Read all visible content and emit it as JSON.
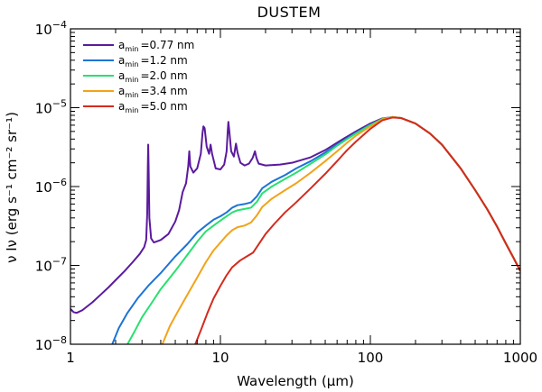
{
  "chart_data": {
    "type": "line",
    "title": "DUSTEM",
    "xlabel": "Wavelength (µm)",
    "ylabel": "ν Iν (erg s⁻¹ cm⁻² sr⁻¹)",
    "xscale": "log",
    "yscale": "log",
    "xlim": [
      1,
      1000
    ],
    "ylim": [
      1e-08,
      0.0001
    ],
    "grid": false,
    "legend_position": "top-left",
    "x_ticks": [
      {
        "value": 1,
        "label": "1"
      },
      {
        "value": 10,
        "label": "10"
      },
      {
        "value": 100,
        "label": "100"
      },
      {
        "value": 1000,
        "label": "1000"
      }
    ],
    "y_ticks": [
      {
        "value": 1e-08,
        "mant": "10",
        "exp": "−8"
      },
      {
        "value": 1e-07,
        "mant": "10",
        "exp": "−7"
      },
      {
        "value": 1e-06,
        "mant": "10",
        "exp": "−6"
      },
      {
        "value": 1e-05,
        "mant": "10",
        "exp": "−5"
      },
      {
        "value": 0.0001,
        "mant": "10",
        "exp": "−4"
      }
    ],
    "series": [
      {
        "name": "a_min = 0.77 nm",
        "legend_label": "=0.77 nm",
        "color": "#5b1a9e",
        "points": [
          [
            1.0,
            2.8e-08
          ],
          [
            1.05,
            2.55e-08
          ],
          [
            1.1,
            2.5e-08
          ],
          [
            1.2,
            2.7e-08
          ],
          [
            1.4,
            3.4e-08
          ],
          [
            1.6,
            4.3e-08
          ],
          [
            1.8,
            5.3e-08
          ],
          [
            2.0,
            6.5e-08
          ],
          [
            2.3,
            8.5e-08
          ],
          [
            2.6,
            1.1e-07
          ],
          [
            2.9,
            1.4e-07
          ],
          [
            3.1,
            1.7e-07
          ],
          [
            3.2,
            2.1e-07
          ],
          [
            3.25,
            4.5e-07
          ],
          [
            3.28,
            1.8e-06
          ],
          [
            3.3,
            3.4e-06
          ],
          [
            3.32,
            1.8e-06
          ],
          [
            3.36,
            4e-07
          ],
          [
            3.45,
            2.2e-07
          ],
          [
            3.6,
            1.95e-07
          ],
          [
            4.0,
            2.1e-07
          ],
          [
            4.5,
            2.5e-07
          ],
          [
            5.0,
            3.6e-07
          ],
          [
            5.3,
            5e-07
          ],
          [
            5.6,
            8.5e-07
          ],
          [
            5.9,
            1.1e-06
          ],
          [
            6.1,
            1.8e-06
          ],
          [
            6.2,
            2.8e-06
          ],
          [
            6.3,
            1.8e-06
          ],
          [
            6.6,
            1.5e-06
          ],
          [
            7.0,
            1.7e-06
          ],
          [
            7.4,
            2.6e-06
          ],
          [
            7.6,
            4.8e-06
          ],
          [
            7.7,
            5.8e-06
          ],
          [
            7.85,
            5.5e-06
          ],
          [
            8.1,
            3.2e-06
          ],
          [
            8.4,
            2.6e-06
          ],
          [
            8.6,
            3.4e-06
          ],
          [
            8.8,
            2.6e-06
          ],
          [
            9.3,
            1.7e-06
          ],
          [
            10.0,
            1.65e-06
          ],
          [
            10.6,
            1.9e-06
          ],
          [
            11.0,
            2.8e-06
          ],
          [
            11.2,
            5.2e-06
          ],
          [
            11.3,
            6.6e-06
          ],
          [
            11.45,
            5.2e-06
          ],
          [
            11.8,
            2.8e-06
          ],
          [
            12.3,
            2.4e-06
          ],
          [
            12.7,
            3.5e-06
          ],
          [
            13.0,
            2.7e-06
          ],
          [
            13.6,
            2e-06
          ],
          [
            14.5,
            1.85e-06
          ],
          [
            15.5,
            1.95e-06
          ],
          [
            16.4,
            2.3e-06
          ],
          [
            17.0,
            2.8e-06
          ],
          [
            17.4,
            2.3e-06
          ],
          [
            18.0,
            1.95e-06
          ],
          [
            20.0,
            1.85e-06
          ],
          [
            25.0,
            1.9e-06
          ],
          [
            30.0,
            2e-06
          ],
          [
            40.0,
            2.35e-06
          ],
          [
            50.0,
            2.9e-06
          ],
          [
            60.0,
            3.6e-06
          ],
          [
            70.0,
            4.3e-06
          ],
          [
            80.0,
            5e-06
          ],
          [
            100.0,
            6.3e-06
          ],
          [
            120.0,
            7.3e-06
          ],
          [
            140.0,
            7.6e-06
          ],
          [
            160.0,
            7.4e-06
          ],
          [
            200.0,
            6.3e-06
          ],
          [
            250.0,
            4.7e-06
          ],
          [
            300.0,
            3.4e-06
          ],
          [
            400.0,
            1.7e-06
          ],
          [
            500.0,
            9e-07
          ],
          [
            600.0,
            5.2e-07
          ],
          [
            700.0,
            3.1e-07
          ],
          [
            800.0,
            1.9e-07
          ],
          [
            900.0,
            1.25e-07
          ],
          [
            1000.0,
            8.5e-08
          ]
        ]
      },
      {
        "name": "a_min = 1.2 nm",
        "legend_label": "=1.2 nm",
        "color": "#1c73d6",
        "points": [
          [
            1.9,
            1e-08
          ],
          [
            2.1,
            1.6e-08
          ],
          [
            2.4,
            2.5e-08
          ],
          [
            2.8,
            3.8e-08
          ],
          [
            3.3,
            5.5e-08
          ],
          [
            4.0,
            8e-08
          ],
          [
            5.0,
            1.3e-07
          ],
          [
            6.0,
            1.85e-07
          ],
          [
            7.0,
            2.6e-07
          ],
          [
            8.0,
            3.2e-07
          ],
          [
            9.0,
            3.8e-07
          ],
          [
            10.0,
            4.2e-07
          ],
          [
            11.0,
            4.7e-07
          ],
          [
            12.0,
            5.4e-07
          ],
          [
            13.0,
            5.8e-07
          ],
          [
            14.5,
            6e-07
          ],
          [
            16.0,
            6.3e-07
          ],
          [
            17.5,
            7.5e-07
          ],
          [
            19.0,
            9.5e-07
          ],
          [
            22.0,
            1.15e-06
          ],
          [
            27.0,
            1.4e-06
          ],
          [
            32.0,
            1.7e-06
          ],
          [
            40.0,
            2.1e-06
          ],
          [
            50.0,
            2.7e-06
          ],
          [
            60.0,
            3.4e-06
          ],
          [
            70.0,
            4.1e-06
          ],
          [
            80.0,
            4.8e-06
          ],
          [
            100.0,
            6.1e-06
          ],
          [
            120.0,
            7.2e-06
          ],
          [
            140.0,
            7.6e-06
          ],
          [
            160.0,
            7.4e-06
          ],
          [
            200.0,
            6.3e-06
          ],
          [
            250.0,
            4.7e-06
          ],
          [
            300.0,
            3.4e-06
          ],
          [
            400.0,
            1.7e-06
          ],
          [
            500.0,
            9e-07
          ],
          [
            600.0,
            5.2e-07
          ],
          [
            700.0,
            3.1e-07
          ],
          [
            800.0,
            1.9e-07
          ],
          [
            900.0,
            1.25e-07
          ],
          [
            1000.0,
            8.5e-08
          ]
        ]
      },
      {
        "name": "a_min = 2.0 nm",
        "legend_label": "=2.0 nm",
        "color": "#28e070",
        "points": [
          [
            2.4,
            1e-08
          ],
          [
            2.7,
            1.5e-08
          ],
          [
            3.0,
            2.2e-08
          ],
          [
            3.5,
            3.4e-08
          ],
          [
            4.0,
            5e-08
          ],
          [
            5.0,
            8.5e-08
          ],
          [
            6.0,
            1.35e-07
          ],
          [
            7.0,
            2e-07
          ],
          [
            8.0,
            2.7e-07
          ],
          [
            9.0,
            3.2e-07
          ],
          [
            10.0,
            3.7e-07
          ],
          [
            11.0,
            4.2e-07
          ],
          [
            12.0,
            4.7e-07
          ],
          [
            13.0,
            5e-07
          ],
          [
            14.5,
            5.2e-07
          ],
          [
            16.0,
            5.4e-07
          ],
          [
            17.5,
            6.4e-07
          ],
          [
            19.0,
            8.2e-07
          ],
          [
            22.0,
            1e-06
          ],
          [
            27.0,
            1.25e-06
          ],
          [
            32.0,
            1.5e-06
          ],
          [
            40.0,
            1.95e-06
          ],
          [
            50.0,
            2.55e-06
          ],
          [
            60.0,
            3.3e-06
          ],
          [
            70.0,
            4e-06
          ],
          [
            80.0,
            4.7e-06
          ],
          [
            100.0,
            6e-06
          ],
          [
            120.0,
            7.2e-06
          ],
          [
            140.0,
            7.6e-06
          ],
          [
            160.0,
            7.4e-06
          ],
          [
            200.0,
            6.3e-06
          ],
          [
            250.0,
            4.7e-06
          ],
          [
            300.0,
            3.4e-06
          ],
          [
            400.0,
            1.7e-06
          ],
          [
            500.0,
            9e-07
          ],
          [
            600.0,
            5.2e-07
          ],
          [
            700.0,
            3.1e-07
          ],
          [
            800.0,
            1.9e-07
          ],
          [
            900.0,
            1.25e-07
          ],
          [
            1000.0,
            8.5e-08
          ]
        ]
      },
      {
        "name": "a_min = 3.4 nm",
        "legend_label": "=3.4 nm",
        "color": "#f2a319",
        "points": [
          [
            4.1,
            1e-08
          ],
          [
            4.6,
            1.7e-08
          ],
          [
            5.2,
            2.6e-08
          ],
          [
            6.0,
            4.2e-08
          ],
          [
            7.0,
            7e-08
          ],
          [
            8.0,
            1.1e-07
          ],
          [
            9.0,
            1.55e-07
          ],
          [
            10.0,
            1.95e-07
          ],
          [
            11.0,
            2.4e-07
          ],
          [
            12.0,
            2.8e-07
          ],
          [
            13.0,
            3.05e-07
          ],
          [
            14.5,
            3.2e-07
          ],
          [
            16.0,
            3.5e-07
          ],
          [
            17.5,
            4.3e-07
          ],
          [
            19.0,
            5.5e-07
          ],
          [
            22.0,
            7e-07
          ],
          [
            27.0,
            9e-07
          ],
          [
            32.0,
            1.1e-06
          ],
          [
            40.0,
            1.5e-06
          ],
          [
            50.0,
            2.1e-06
          ],
          [
            60.0,
            2.8e-06
          ],
          [
            70.0,
            3.6e-06
          ],
          [
            80.0,
            4.4e-06
          ],
          [
            100.0,
            5.8e-06
          ],
          [
            120.0,
            7.1e-06
          ],
          [
            140.0,
            7.6e-06
          ],
          [
            160.0,
            7.4e-06
          ],
          [
            200.0,
            6.3e-06
          ],
          [
            250.0,
            4.7e-06
          ],
          [
            300.0,
            3.4e-06
          ],
          [
            400.0,
            1.7e-06
          ],
          [
            500.0,
            9e-07
          ],
          [
            600.0,
            5.2e-07
          ],
          [
            700.0,
            3.1e-07
          ],
          [
            800.0,
            1.9e-07
          ],
          [
            900.0,
            1.25e-07
          ],
          [
            1000.0,
            8.5e-08
          ]
        ]
      },
      {
        "name": "a_min = 5.0 nm",
        "legend_label": "=5.0 nm",
        "color": "#d42a1e",
        "points": [
          [
            6.8,
            1e-08
          ],
          [
            7.5,
            1.6e-08
          ],
          [
            8.2,
            2.5e-08
          ],
          [
            9.0,
            3.8e-08
          ],
          [
            10.0,
            5.5e-08
          ],
          [
            11.0,
            7.5e-08
          ],
          [
            12.0,
            9.5e-08
          ],
          [
            13.5,
            1.15e-07
          ],
          [
            15.0,
            1.3e-07
          ],
          [
            16.5,
            1.45e-07
          ],
          [
            18.0,
            1.85e-07
          ],
          [
            20.0,
            2.5e-07
          ],
          [
            23.0,
            3.4e-07
          ],
          [
            27.0,
            4.7e-07
          ],
          [
            32.0,
            6.3e-07
          ],
          [
            40.0,
            9.5e-07
          ],
          [
            50.0,
            1.45e-06
          ],
          [
            60.0,
            2.1e-06
          ],
          [
            70.0,
            2.9e-06
          ],
          [
            80.0,
            3.7e-06
          ],
          [
            100.0,
            5.4e-06
          ],
          [
            120.0,
            6.9e-06
          ],
          [
            140.0,
            7.5e-06
          ],
          [
            160.0,
            7.4e-06
          ],
          [
            200.0,
            6.3e-06
          ],
          [
            250.0,
            4.7e-06
          ],
          [
            300.0,
            3.4e-06
          ],
          [
            400.0,
            1.7e-06
          ],
          [
            500.0,
            9e-07
          ],
          [
            600.0,
            5.2e-07
          ],
          [
            700.0,
            3.1e-07
          ],
          [
            800.0,
            1.9e-07
          ],
          [
            900.0,
            1.25e-07
          ],
          [
            1000.0,
            8.5e-08
          ]
        ]
      }
    ]
  }
}
